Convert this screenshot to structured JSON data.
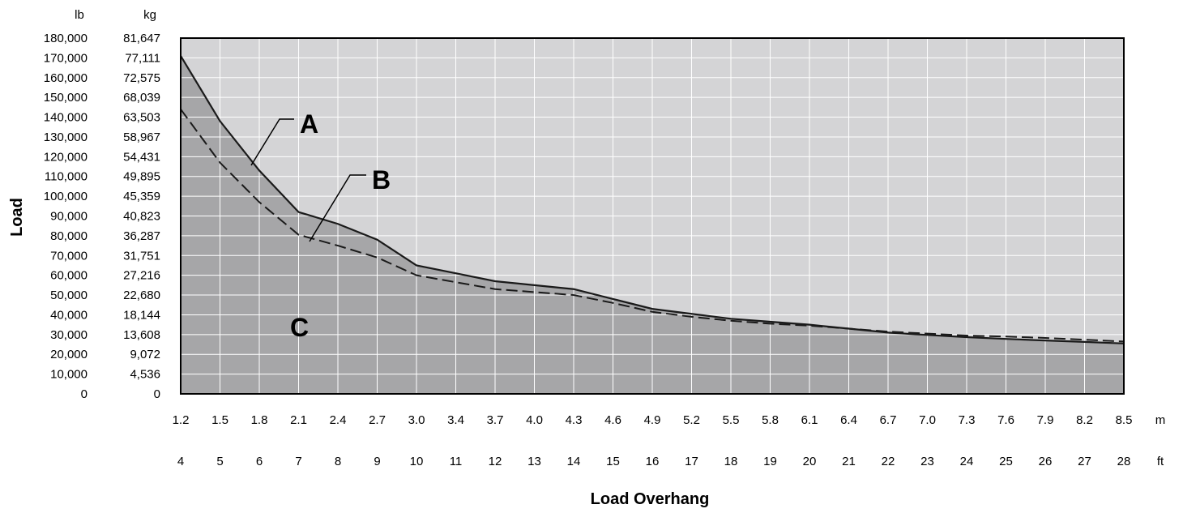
{
  "chart_data": {
    "type": "area",
    "xlabel": "Load Overhang",
    "ylabel": "Load",
    "x_units": {
      "primary": "m",
      "secondary": "ft"
    },
    "y_units": {
      "primary": "lb",
      "secondary": "kg"
    },
    "x_ticks_m": [
      "1.2",
      "1.5",
      "1.8",
      "2.1",
      "2.4",
      "2.7",
      "3.0",
      "3.4",
      "3.7",
      "4.0",
      "4.3",
      "4.6",
      "4.9",
      "5.2",
      "5.5",
      "5.8",
      "6.1",
      "6.4",
      "6.7",
      "7.0",
      "7.3",
      "7.6",
      "7.9",
      "8.2",
      "8.5"
    ],
    "x_ticks_ft": [
      "4",
      "5",
      "6",
      "7",
      "8",
      "9",
      "10",
      "11",
      "12",
      "13",
      "14",
      "15",
      "16",
      "17",
      "18",
      "19",
      "20",
      "21",
      "22",
      "23",
      "24",
      "25",
      "26",
      "27",
      "28"
    ],
    "y_ticks_lb": [
      "180,000",
      "170,000",
      "160,000",
      "150,000",
      "140,000",
      "130,000",
      "120,000",
      "110,000",
      "100,000",
      "90,000",
      "80,000",
      "70,000",
      "60,000",
      "50,000",
      "40,000",
      "30,000",
      "20,000",
      "10,000",
      "0"
    ],
    "y_ticks_kg": [
      "81,647",
      "77,111",
      "72,575",
      "68,039",
      "63,503",
      "58,967",
      "54,431",
      "49,895",
      "45,359",
      "40,823",
      "36,287",
      "31,751",
      "27,216",
      "22,680",
      "18,144",
      "13,608",
      "9,072",
      "4,536",
      "0"
    ],
    "ylim_lb": [
      0,
      180000
    ],
    "x": [
      4,
      5,
      6,
      7,
      8,
      9,
      10,
      11,
      12,
      13,
      14,
      15,
      16,
      17,
      18,
      19,
      20,
      21,
      22,
      23,
      24,
      25,
      26,
      27,
      28
    ],
    "series": [
      {
        "name": "A",
        "style": "solid",
        "values": [
          171000,
          138000,
          113000,
          92000,
          86000,
          78000,
          65000,
          61000,
          57000,
          55000,
          53000,
          48000,
          43000,
          40500,
          38000,
          36500,
          35000,
          33000,
          31000,
          29800,
          28700,
          27800,
          27000,
          26300,
          25500
        ]
      },
      {
        "name": "B",
        "style": "dashed",
        "values": [
          144000,
          117000,
          97000,
          80500,
          75000,
          69000,
          60000,
          56500,
          53000,
          51500,
          50000,
          46000,
          41500,
          39000,
          37000,
          35500,
          34500,
          33000,
          31500,
          30500,
          29500,
          29000,
          28300,
          27400,
          26500
        ]
      }
    ],
    "region_label": "C",
    "grid": true,
    "colors": {
      "above": "#d4d4d6",
      "below": "#a6a6a8",
      "grid": "#ffffff",
      "line": "#1a1a1a"
    }
  }
}
